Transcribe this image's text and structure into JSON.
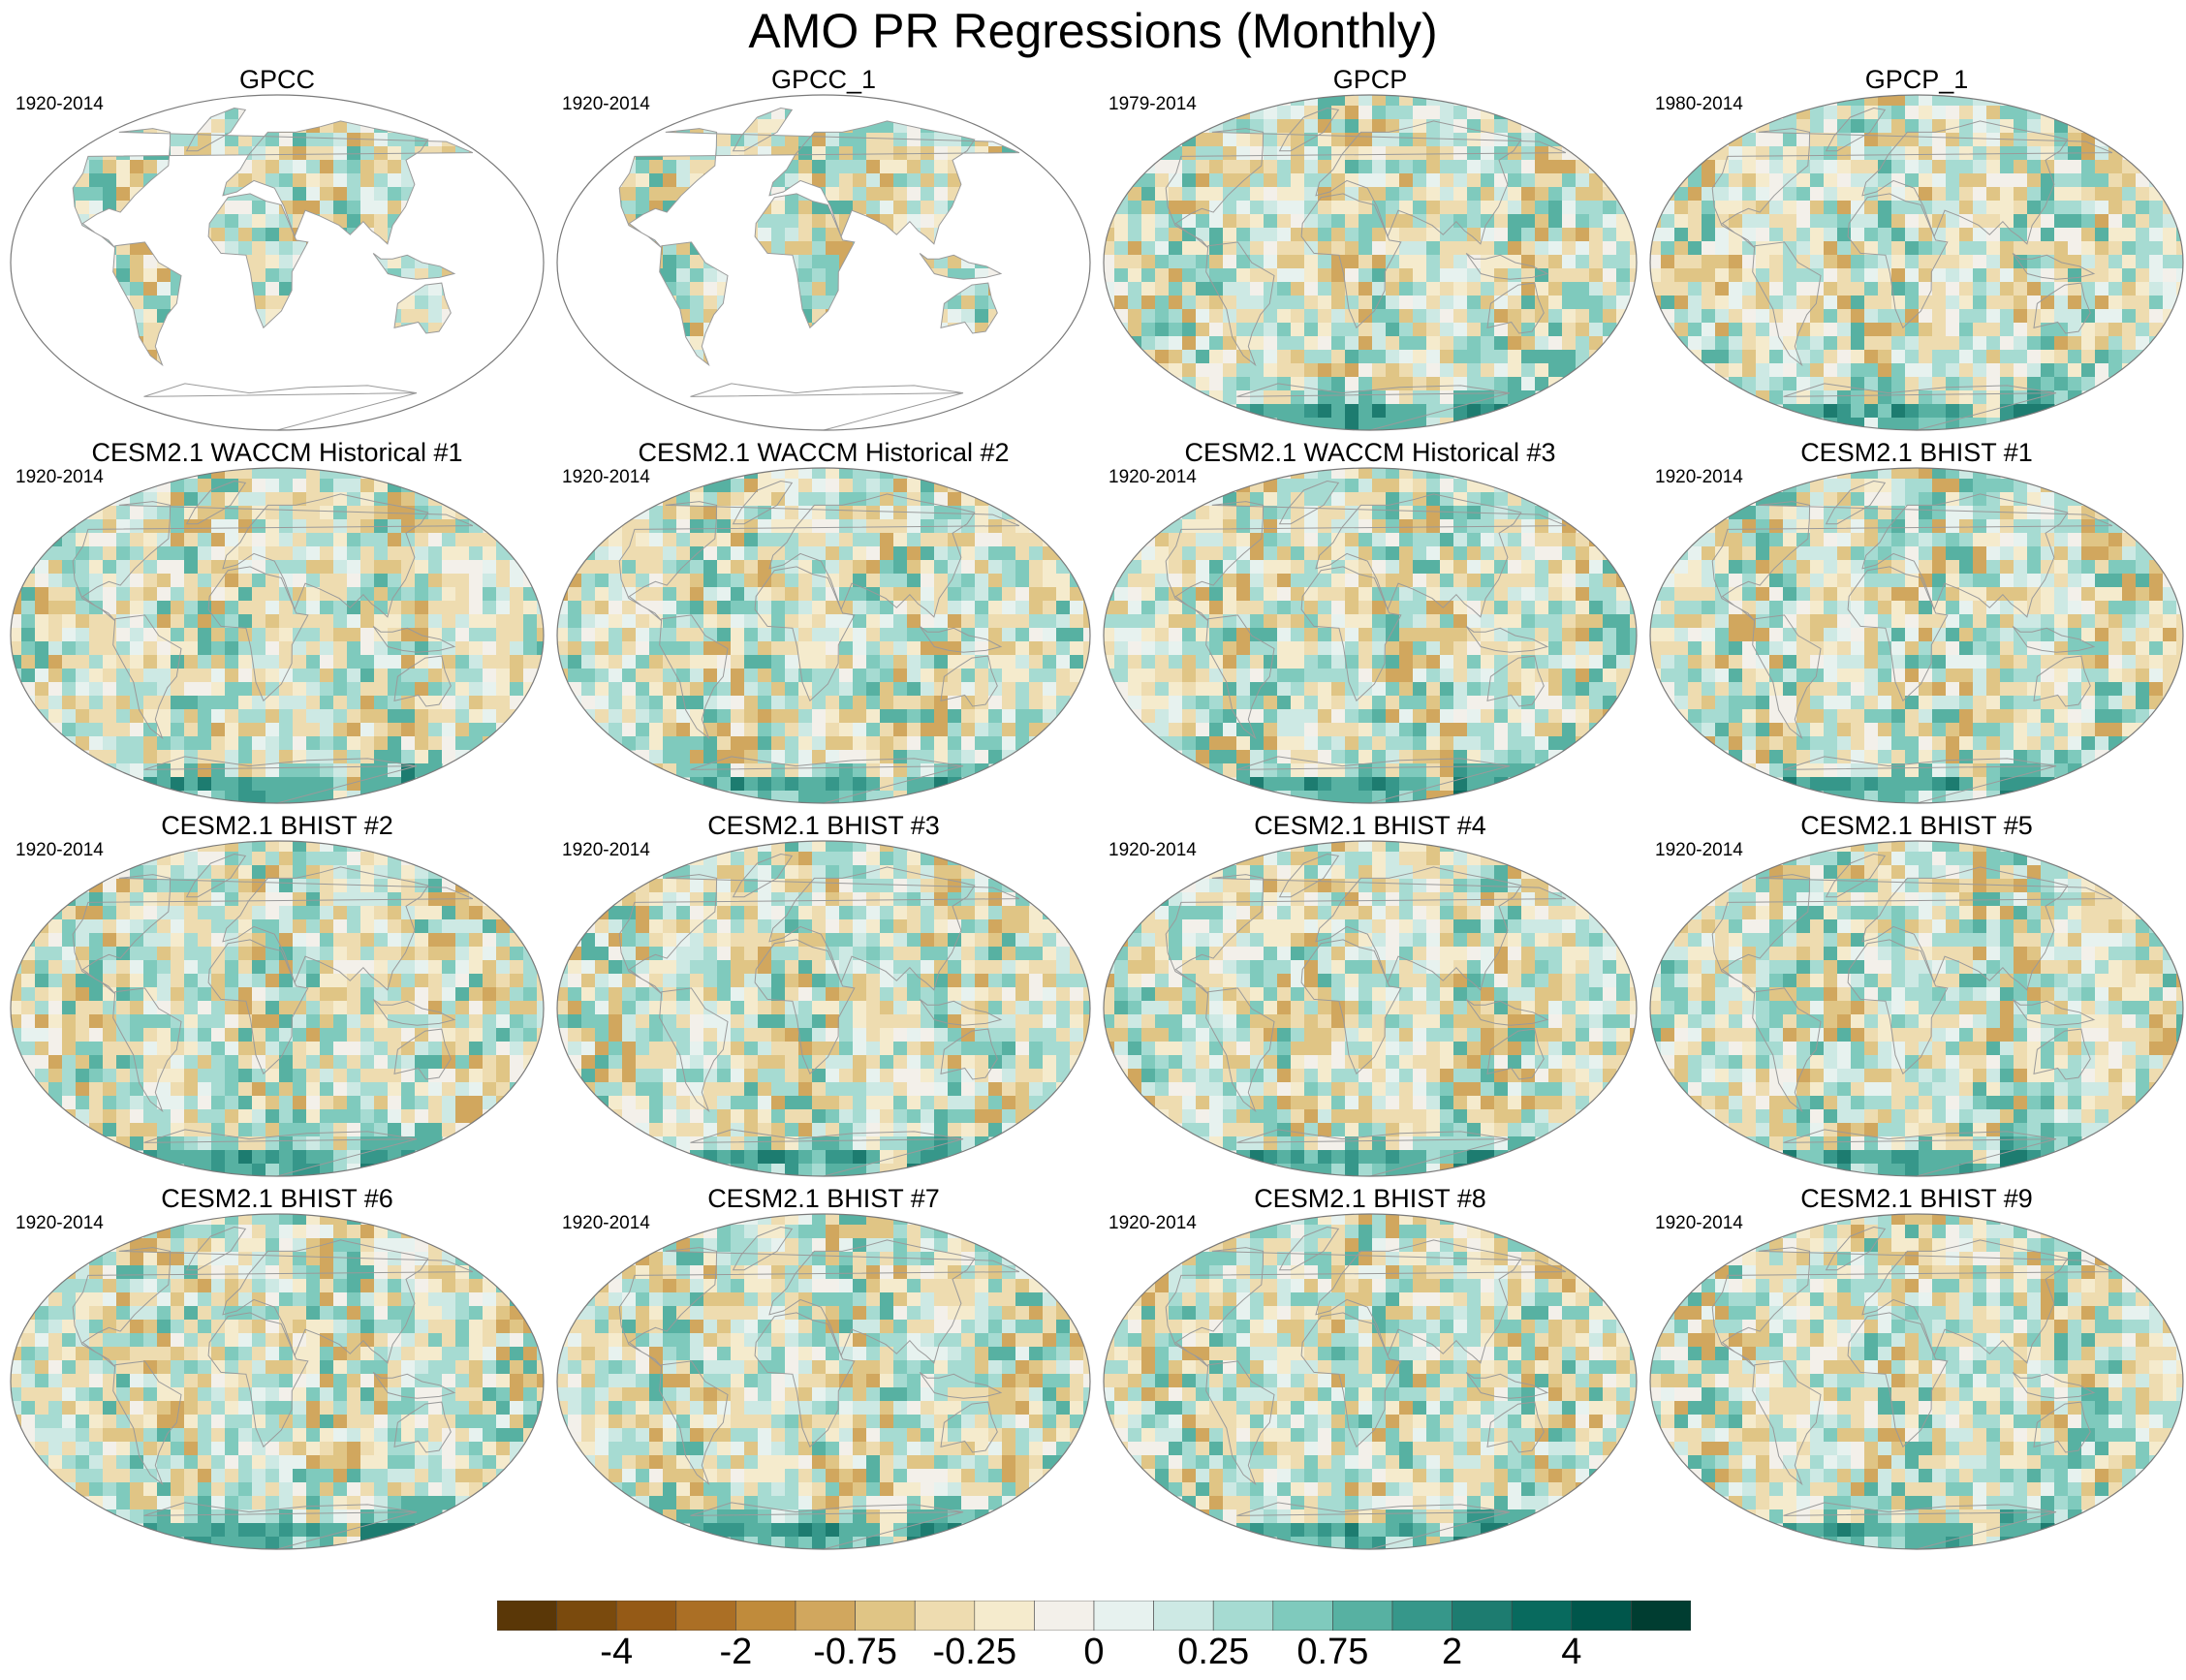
{
  "title": "AMO PR Regressions (Monthly)",
  "panels": [
    {
      "title": "GPCC",
      "years": "1920-2014",
      "coverage": "land"
    },
    {
      "title": "GPCC_1",
      "years": "1920-2014",
      "coverage": "land"
    },
    {
      "title": "GPCP",
      "years": "1979-2014",
      "coverage": "global"
    },
    {
      "title": "GPCP_1",
      "years": "1980-2014",
      "coverage": "global"
    },
    {
      "title": "CESM2.1 WACCM Historical #1",
      "years": "1920-2014",
      "coverage": "global"
    },
    {
      "title": "CESM2.1 WACCM Historical #2",
      "years": "1920-2014",
      "coverage": "global"
    },
    {
      "title": "CESM2.1 WACCM Historical #3",
      "years": "1920-2014",
      "coverage": "global"
    },
    {
      "title": "CESM2.1 BHIST #1",
      "years": "1920-2014",
      "coverage": "global"
    },
    {
      "title": "CESM2.1 BHIST #2",
      "years": "1920-2014",
      "coverage": "global"
    },
    {
      "title": "CESM2.1 BHIST #3",
      "years": "1920-2014",
      "coverage": "global"
    },
    {
      "title": "CESM2.1 BHIST #4",
      "years": "1920-2014",
      "coverage": "global"
    },
    {
      "title": "CESM2.1 BHIST #5",
      "years": "1920-2014",
      "coverage": "global"
    },
    {
      "title": "CESM2.1 BHIST #6",
      "years": "1920-2014",
      "coverage": "global"
    },
    {
      "title": "CESM2.1 BHIST #7",
      "years": "1920-2014",
      "coverage": "global"
    },
    {
      "title": "CESM2.1 BHIST #8",
      "years": "1920-2014",
      "coverage": "global"
    },
    {
      "title": "CESM2.1 BHIST #9",
      "years": "1920-2014",
      "coverage": "global"
    }
  ],
  "colorbar": {
    "colors": [
      "#5a3707",
      "#7a4a0d",
      "#955a16",
      "#ab6f25",
      "#c08b3b",
      "#d1a75e",
      "#e0c585",
      "#eedcb0",
      "#f5ebcd",
      "#f3f0ea",
      "#e7f2ef",
      "#cde9e4",
      "#a6dbd2",
      "#7fcabd",
      "#57b1a2",
      "#36978a",
      "#1d7c70",
      "#086a5e",
      "#00564b",
      "#003d31"
    ],
    "labels": [
      "-4",
      "-2",
      "-0.75",
      "-0.25",
      "0",
      "0.25",
      "0.75",
      "2",
      "4"
    ]
  },
  "map_colors": {
    "ocean_base": "#f3f0ea",
    "coastline": "#9a9a9a",
    "frame": "#7a7a7a",
    "land_fill": "#f0eee6"
  }
}
